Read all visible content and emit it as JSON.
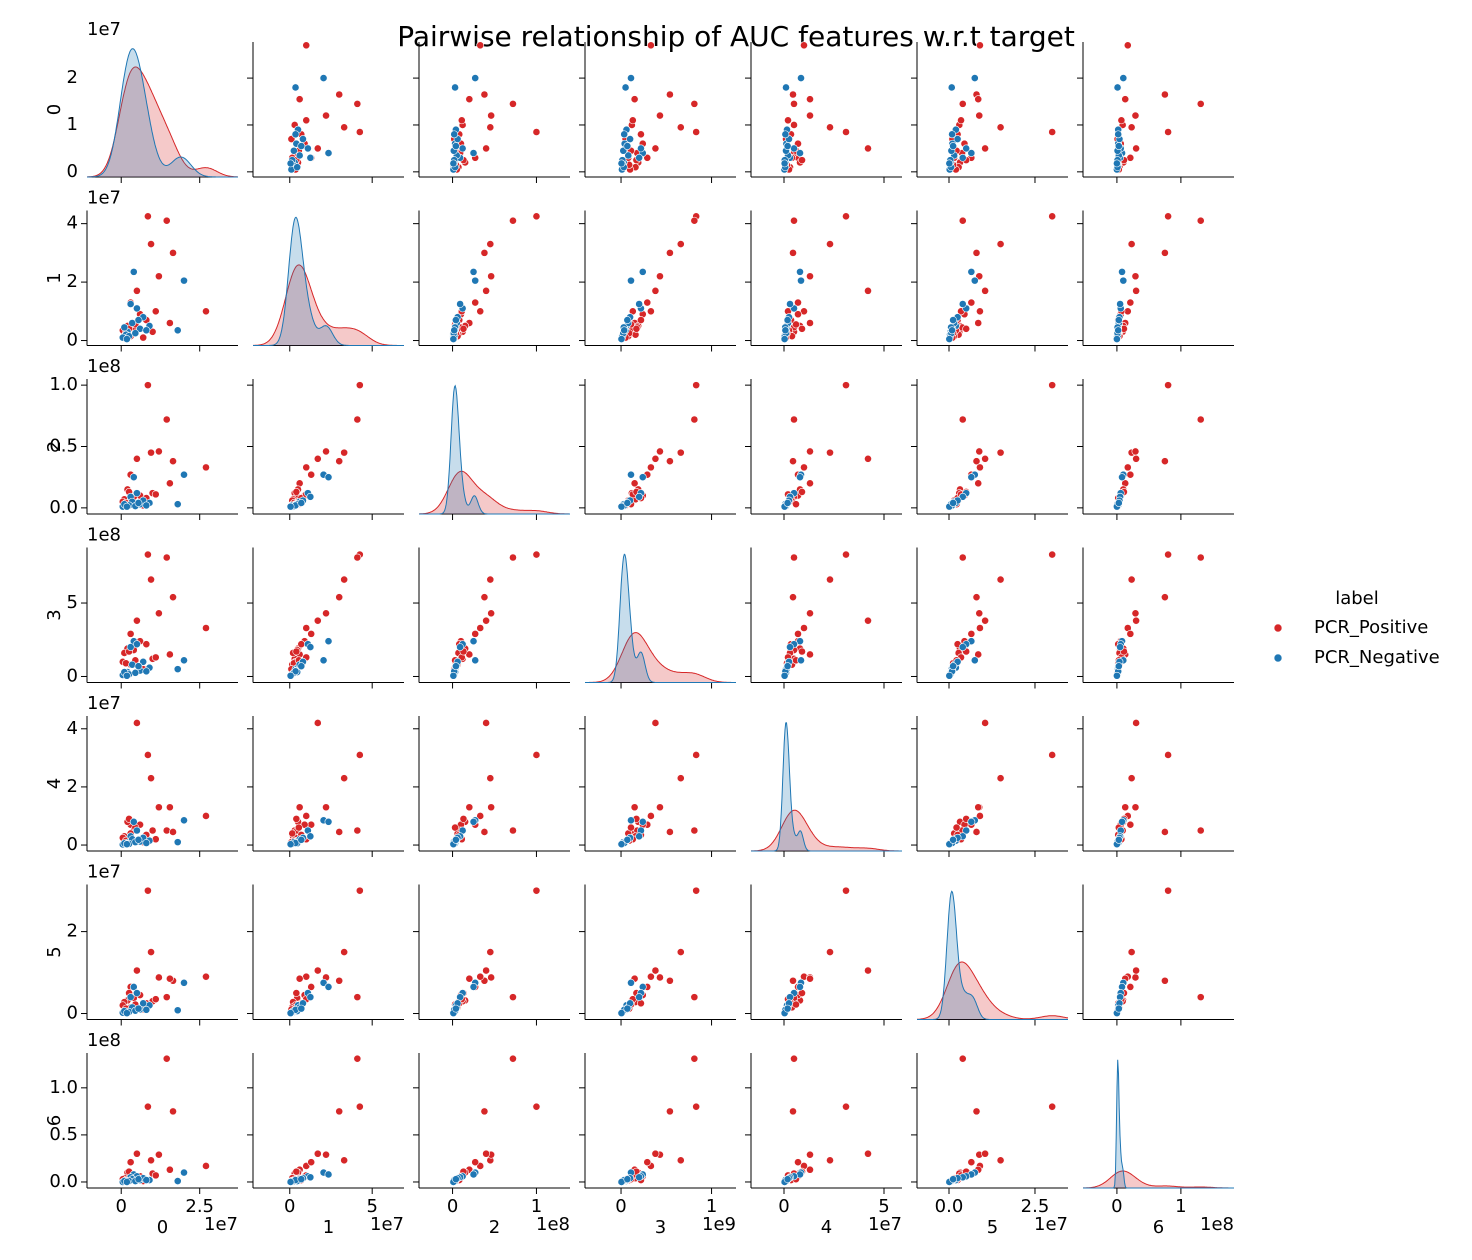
{
  "chart_data": {
    "type": "pairplot",
    "title": "Pairwise relationship of AUC features w.r.t target",
    "variables": [
      "0",
      "1",
      "2",
      "3",
      "4",
      "5",
      "6"
    ],
    "legend_title": "label",
    "series": [
      {
        "name": "PCR_Positive",
        "color": "#d62728",
        "values": [
          [
            8500000.0,
            14500000.0,
            9500000.0,
            16500000.0,
            27000000.0,
            12000000.0,
            5000000.0,
            3000000.0,
            15500000.0,
            2000000.0,
            10000000.0,
            6000000.0,
            4000000.0,
            1000000.0,
            500000.0,
            3000000.0,
            8000000.0,
            11000000.0,
            1500000.0,
            4500000.0,
            7000000.0,
            2500000.0
          ],
          [
            42500000.0,
            41000000.0,
            33000000.0,
            30000000.0,
            10000000.0,
            22000000.0,
            17000000.0,
            13000000.0,
            6000000.0,
            5000000.0,
            3000000.0,
            9000000.0,
            4500000.0,
            2000000.0,
            3500000.0,
            1500000.0,
            7000000.0,
            10000000.0,
            2500000.0,
            5500000.0,
            1000000.0,
            4000000.0
          ],
          [
            100000000.0,
            72000000.0,
            45000000.0,
            38000000.0,
            33000000.0,
            46000000.0,
            40000000.0,
            27000000.0,
            20000000.0,
            15000000.0,
            12000000.0,
            10000000.0,
            9000000.0,
            7000000.0,
            5000000.0,
            6000000.0,
            8000000.0,
            11000000.0,
            4000000.0,
            3000000.0,
            2000000.0,
            13000000.0
          ],
          [
            830000000.0,
            810000000.0,
            660000000.0,
            540000000.0,
            330000000.0,
            430000000.0,
            380000000.0,
            290000000.0,
            150000000.0,
            190000000.0,
            120000000.0,
            240000000.0,
            180000000.0,
            160000000.0,
            100000000.0,
            80000000.0,
            220000000.0,
            130000000.0,
            90000000.0,
            110000000.0,
            50000000.0,
            170000000.0
          ],
          [
            31000000.0,
            5000000.0,
            23000000.0,
            4500000.0,
            10000000.0,
            13000000.0,
            42000000.0,
            7000000.0,
            13000000.0,
            8000000.0,
            5000000.0,
            7000000.0,
            5000000.0,
            3000000.0,
            2500000.0,
            4000000.0,
            3500000.0,
            2000000.0,
            1500000.0,
            6000000.0,
            1000000.0,
            9000000.0
          ],
          [
            30000000.0,
            4000000.0,
            15000000.0,
            8000000.0,
            9000000.0,
            8800000.0,
            10500000.0,
            6500000.0,
            8500000.0,
            3200000.0,
            3000000.0,
            4500000.0,
            3800000.0,
            2800000.0,
            2000000.0,
            1500000.0,
            2500000.0,
            3500000.0,
            1200000.0,
            2200000.0,
            1000000.0,
            5000000.0
          ],
          [
            80000000.0,
            131000000.0,
            23000000.0,
            75000000.0,
            17000000.0,
            29000000.0,
            30000000.0,
            21000000.0,
            13000000.0,
            10000000.0,
            9000000.0,
            6000000.0,
            5000000.0,
            4000000.0,
            3000000.0,
            4000000.0,
            2000000.0,
            7000000.0,
            2000000.0,
            3000000.0,
            1000000.0,
            11000000.0
          ]
        ]
      },
      {
        "name": "PCR_Negative",
        "color": "#1f77b4",
        "values": [
          [
            20000000.0,
            18000000.0,
            4000000.0,
            5000000.0,
            3000000.0,
            9000000.0,
            2000000.0,
            6000000.0,
            1500000.0,
            3500000.0,
            500000.0,
            7000000.0,
            2500000.0,
            1000000.0,
            4500000.0,
            8000000.0,
            1800000.0,
            5500000.0
          ],
          [
            20500000.0,
            3500000.0,
            23500000.0,
            11000000.0,
            12500000.0,
            5000000.0,
            3000000.0,
            4000000.0,
            2000000.0,
            6000000.0,
            1000000.0,
            8000000.0,
            1500000.0,
            4500000.0,
            2500000.0,
            3500000.0,
            500000.0,
            7000000.0
          ],
          [
            27000000.0,
            3000000.0,
            25000000.0,
            12000000.0,
            9000000.0,
            4000000.0,
            2000000.0,
            3000000.0,
            1000000.0,
            5000000.0,
            1000000.0,
            6000000.0,
            2000000.0,
            3000000.0,
            1500000.0,
            2000000.0,
            1000000.0,
            4000000.0
          ],
          [
            110000000.0,
            50000000.0,
            240000000.0,
            220000000.0,
            200000000.0,
            60000000.0,
            30000000.0,
            40000000.0,
            20000000.0,
            80000000.0,
            10000000.0,
            100000000.0,
            15000000.0,
            30000000.0,
            25000000.0,
            35000000.0,
            5000000.0,
            70000000.0
          ],
          [
            8500000.0,
            1000000.0,
            8000000.0,
            5000000.0,
            3000000.0,
            1500000.0,
            800000.0,
            1200000.0,
            500000.0,
            2000000.0,
            200000.0,
            2500000.0,
            400000.0,
            600000.0,
            1000000.0,
            700000.0,
            300000.0,
            1800000.0
          ],
          [
            7500000.0,
            800000.0,
            6500000.0,
            5000000.0,
            4000000.0,
            2000000.0,
            500000.0,
            1000000.0,
            300000.0,
            1500000.0,
            200000.0,
            2500000.0,
            400000.0,
            600000.0,
            700000.0,
            900000.0,
            100000.0,
            1200000.0
          ],
          [
            10000000.0,
            1000000.0,
            8000000.0,
            6000000.0,
            5000000.0,
            2000000.0,
            1000000.0,
            2000000.0,
            1000000.0,
            3000000.0,
            0,
            4000000.0,
            1000000.0,
            1000000.0,
            1000000.0,
            2000000.0,
            0,
            3000000.0
          ]
        ]
      }
    ],
    "axes": [
      {
        "xlim": [
          -10900000.0,
          37200000.0
        ],
        "xticks": [
          0,
          {
            "value": 25000000.0,
            "label": "2.5"
          }
        ],
        "x_offset": "1e7",
        "ylim": [
          -1100000.0,
          27700000.0
        ],
        "yticks": [
          0,
          {
            "value": 10000000.0,
            "label": "1"
          },
          {
            "value": 20000000.0,
            "label": "2"
          }
        ],
        "y_offset": "1e7"
      },
      {
        "xlim": [
          -22300000.0,
          69300000.0
        ],
        "xticks": [
          0,
          {
            "value": 50000000.0,
            "label": "5"
          }
        ],
        "x_offset": "1e7",
        "ylim": [
          -1700000.0,
          44500000.0
        ],
        "yticks": [
          0,
          {
            "value": 20000000.0,
            "label": "2"
          },
          {
            "value": 40000000.0,
            "label": "4"
          }
        ],
        "y_offset": "1e7"
      },
      {
        "xlim": [
          -40000000.0,
          140000000.0
        ],
        "xticks": [
          0,
          {
            "value": 100000000.0,
            "label": "1"
          }
        ],
        "x_offset": "1e8",
        "ylim": [
          -5000000.0,
          105000000.0
        ],
        "yticks": [
          {
            "value": 0,
            "label": "0.0"
          },
          {
            "value": 50000000.0,
            "label": "0.5"
          },
          {
            "value": 100000000.0,
            "label": "1.0"
          }
        ],
        "y_offset": "1e8"
      },
      {
        "xlim": [
          -398000000.0,
          1270000000.0
        ],
        "xticks": [
          0,
          {
            "value": 1000000000.0,
            "label": "1"
          }
        ],
        "x_offset": "1e9",
        "ylim": [
          -41000000.0,
          878000000.0
        ],
        "yticks": [
          0,
          {
            "value": 500000000.0,
            "label": "5"
          }
        ],
        "y_offset": "1e8"
      },
      {
        "xlim": [
          -16500000.0,
          59000000.0
        ],
        "xticks": [
          0,
          {
            "value": 50000000.0,
            "label": "5"
          }
        ],
        "x_offset": "1e7",
        "ylim": [
          -2050000.0,
          44400000.0
        ],
        "yticks": [
          0,
          {
            "value": 20000000.0,
            "label": "2"
          },
          {
            "value": 40000000.0,
            "label": "4"
          }
        ],
        "y_offset": "1e7"
      },
      {
        "xlim": [
          -9300000.0,
          34600000.0
        ],
        "xticks": [
          {
            "value": 0,
            "label": "0.0"
          },
          {
            "value": 25000000.0,
            "label": "2.5"
          }
        ],
        "x_offset": "1e7",
        "ylim": [
          -1460000.0,
          31500000.0
        ],
        "yticks": [
          0,
          {
            "value": 20000000.0,
            "label": "2"
          }
        ],
        "y_offset": "1e7"
      },
      {
        "xlim": [
          -53000000.0,
          183000000.0
        ],
        "xticks": [
          0,
          {
            "value": 100000000.0,
            "label": "1"
          }
        ],
        "x_offset": "1e8",
        "ylim": [
          -6400000.0,
          137000000.0
        ],
        "yticks": [
          {
            "value": 0,
            "label": "0.0"
          },
          {
            "value": 50000000.0,
            "label": "0.5"
          },
          {
            "value": 100000000.0,
            "label": "1.0"
          }
        ],
        "y_offset": "1e8"
      }
    ]
  }
}
